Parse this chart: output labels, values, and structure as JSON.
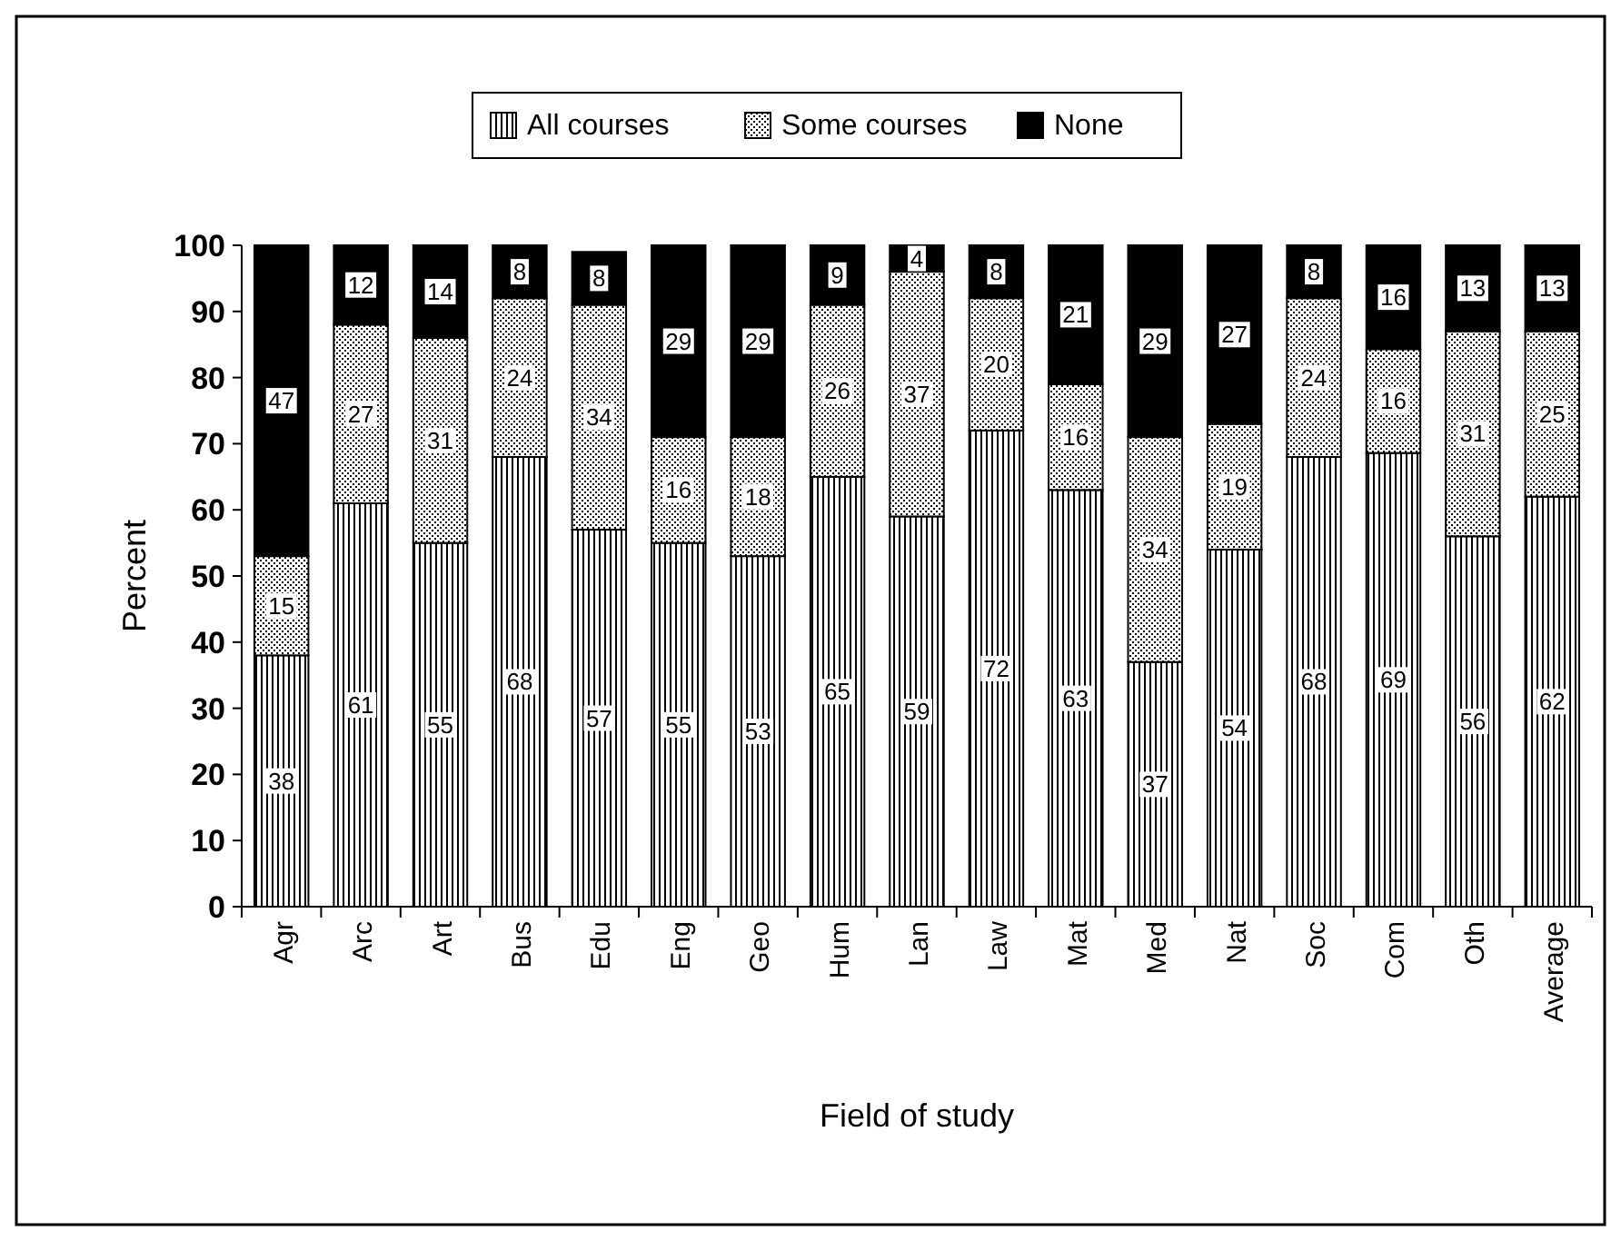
{
  "chart_data": {
    "type": "bar",
    "stacked": true,
    "xlabel": "Field of study",
    "ylabel": "Percent",
    "categories": [
      "Agr",
      "Arc",
      "Art",
      "Bus",
      "Edu",
      "Eng",
      "Geo",
      "Hum",
      "Lan",
      "Law",
      "Mat",
      "Med",
      "Nat",
      "Soc",
      "Com",
      "Oth",
      "Average"
    ],
    "series": [
      {
        "name": "All courses",
        "color": "#000000",
        "values": [
          38,
          61,
          55,
          68,
          57,
          55,
          53,
          65,
          59,
          72,
          63,
          37,
          54,
          68,
          68.6,
          56,
          62
        ],
        "value_labels": [
          "38",
          "61",
          "55",
          "68",
          "57",
          "55",
          "53",
          "65",
          "59",
          "72",
          "63",
          "37",
          "54",
          "68",
          "69",
          "56",
          "62"
        ]
      },
      {
        "name": "Some courses",
        "color": "#000000",
        "values": [
          15,
          27,
          31,
          24,
          34,
          16,
          18,
          26,
          37,
          20,
          16,
          34,
          19,
          24,
          15.7,
          31,
          25
        ],
        "value_labels": [
          "15",
          "27",
          "31",
          "24",
          "34",
          "16",
          "18",
          "26",
          "37",
          "20",
          "16",
          "34",
          "19",
          "24",
          "16",
          "31",
          "25"
        ]
      },
      {
        "name": "None",
        "color": "#000000",
        "values": [
          47,
          12,
          14,
          8,
          8,
          29,
          29,
          9,
          4,
          8,
          21,
          29,
          27,
          8,
          15.7,
          13,
          13
        ],
        "value_labels": [
          "47",
          "12",
          "14",
          "8",
          "8",
          "29",
          "29",
          "9",
          "4",
          "8",
          "21",
          "29",
          "27",
          "8",
          "16",
          "13",
          "13"
        ]
      }
    ],
    "ylim": [
      0,
      100
    ],
    "yticks": [
      0,
      10,
      20,
      30,
      40,
      50,
      60,
      70,
      80,
      90,
      100
    ],
    "legend": "top",
    "grid": false
  }
}
